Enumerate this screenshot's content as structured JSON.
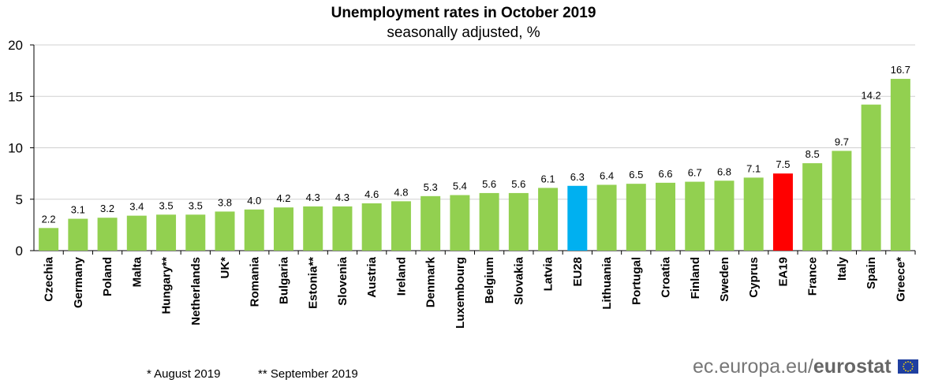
{
  "chart_data": {
    "type": "bar",
    "title": "Unemployment rates in October 2019",
    "subtitle": "seasonally adjusted, %",
    "categories": [
      "Czechia",
      "Germany",
      "Poland",
      "Malta",
      "Hungary**",
      "Netherlands",
      "UK*",
      "Romania",
      "Bulgaria",
      "Estonia**",
      "Slovenia",
      "Austria",
      "Ireland",
      "Denmark",
      "Luxembourg",
      "Belgium",
      "Slovakia",
      "Latvia",
      "EU28",
      "Lithuania",
      "Portugal",
      "Croatia",
      "Finland",
      "Sweden",
      "Cyprus",
      "EA19",
      "France",
      "Italy",
      "Spain",
      "Greece*"
    ],
    "values": [
      2.2,
      3.1,
      3.2,
      3.4,
      3.5,
      3.5,
      3.8,
      4.0,
      4.2,
      4.3,
      4.3,
      4.6,
      4.8,
      5.3,
      5.4,
      5.6,
      5.6,
      6.1,
      6.3,
      6.4,
      6.5,
      6.6,
      6.7,
      6.8,
      7.1,
      7.5,
      8.5,
      9.7,
      14.2,
      16.7
    ],
    "value_labels": [
      "2.2",
      "3.1",
      "3.2",
      "3.4",
      "3.5",
      "3.5",
      "3.8",
      "4.0",
      "4.2",
      "4.3",
      "4.3",
      "4.6",
      "4.8",
      "5.3",
      "5.4",
      "5.6",
      "5.6",
      "6.1",
      "6.3",
      "6.4",
      "6.5",
      "6.6",
      "6.7",
      "6.8",
      "7.1",
      "7.5",
      "8.5",
      "9.7",
      "14.2",
      "16.7"
    ],
    "ylim": [
      0,
      20
    ],
    "yticks": [
      "0",
      "5",
      "10",
      "15",
      "20"
    ],
    "grid": true,
    "colors": {
      "default": "#92d050",
      "EU28": "#00b0f0",
      "EA19": "#ff0000"
    }
  },
  "footnotes": [
    "*  August 2019",
    "** September 2019"
  ],
  "source": {
    "prefix": "ec.europa.eu/",
    "brand": "eurostat"
  }
}
